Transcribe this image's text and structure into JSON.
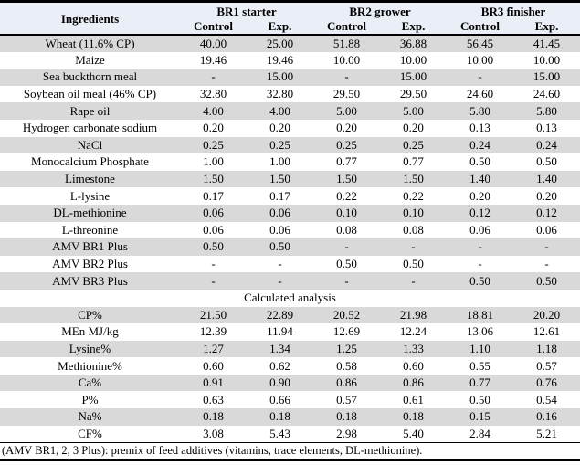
{
  "table": {
    "header": {
      "ingredients_label": "Ingredients",
      "groups": [
        {
          "label": "BR1 starter",
          "subcols": [
            "Control",
            "Exp."
          ]
        },
        {
          "label": "BR2 grower",
          "subcols": [
            "Control",
            "Exp."
          ]
        },
        {
          "label": "BR3 finisher",
          "subcols": [
            "Control",
            "Exp."
          ]
        }
      ]
    },
    "ingredient_rows": [
      {
        "label": "Wheat (11.6% CP)",
        "values": [
          "40.00",
          "25.00",
          "51.88",
          "36.88",
          "56.45",
          "41.45"
        ]
      },
      {
        "label": "Maize",
        "values": [
          "19.46",
          "19.46",
          "10.00",
          "10.00",
          "10.00",
          "10.00"
        ]
      },
      {
        "label": "Sea buckthorn meal",
        "values": [
          "-",
          "15.00",
          "-",
          "15.00",
          "-",
          "15.00"
        ]
      },
      {
        "label": "Soybean oil meal (46% CP)",
        "values": [
          "32.80",
          "32.80",
          "29.50",
          "29.50",
          "24.60",
          "24.60"
        ]
      },
      {
        "label": "Rape oil",
        "values": [
          "4.00",
          "4.00",
          "5.00",
          "5.00",
          "5.80",
          "5.80"
        ]
      },
      {
        "label": "Hydrogen carbonate sodium",
        "values": [
          "0.20",
          "0.20",
          "0.20",
          "0.20",
          "0.13",
          "0.13"
        ]
      },
      {
        "label": "NaCl",
        "values": [
          "0.25",
          "0.25",
          "0.25",
          "0.25",
          "0.24",
          "0.24"
        ]
      },
      {
        "label": "Monocalcium Phosphate",
        "values": [
          "1.00",
          "1.00",
          "0.77",
          "0.77",
          "0.50",
          "0.50"
        ]
      },
      {
        "label": "Limestone",
        "values": [
          "1.50",
          "1.50",
          "1.50",
          "1.50",
          "1.40",
          "1.40"
        ]
      },
      {
        "label": "L-lysine",
        "values": [
          "0.17",
          "0.17",
          "0.22",
          "0.22",
          "0.20",
          "0.20"
        ]
      },
      {
        "label": "DL-methionine",
        "values": [
          "0.06",
          "0.06",
          "0.10",
          "0.10",
          "0.12",
          "0.12"
        ]
      },
      {
        "label": "L-threonine",
        "values": [
          "0.06",
          "0.06",
          "0.08",
          "0.08",
          "0.06",
          "0.06"
        ]
      },
      {
        "label": "AMV BR1 Plus",
        "values": [
          "0.50",
          "0.50",
          "-",
          "-",
          "-",
          "-"
        ]
      },
      {
        "label": "AMV BR2 Plus",
        "values": [
          "-",
          "-",
          "0.50",
          "0.50",
          "-",
          "-"
        ]
      },
      {
        "label": "AMV BR3 Plus",
        "values": [
          "-",
          "-",
          "-",
          "-",
          "0.50",
          "0.50"
        ]
      }
    ],
    "section_label": "Calculated analysis",
    "analysis_rows": [
      {
        "label": "CP%",
        "values": [
          "21.50",
          "22.89",
          "20.52",
          "21.98",
          "18.81",
          "20.20"
        ]
      },
      {
        "label": "MEn MJ/kg",
        "values": [
          "12.39",
          "11.94",
          "12.69",
          "12.24",
          "13.06",
          "12.61"
        ]
      },
      {
        "label": "Lysine%",
        "values": [
          "1.27",
          "1.34",
          "1.25",
          "1.33",
          "1.10",
          "1.18"
        ]
      },
      {
        "label": "Methionine%",
        "values": [
          "0.60",
          "0.62",
          "0.58",
          "0.60",
          "0.55",
          "0.57"
        ]
      },
      {
        "label": "Ca%",
        "values": [
          "0.91",
          "0.90",
          "0.86",
          "0.86",
          "0.77",
          "0.76"
        ]
      },
      {
        "label": "P%",
        "values": [
          "0.63",
          "0.66",
          "0.57",
          "0.61",
          "0.50",
          "0.54"
        ]
      },
      {
        "label": "Na%",
        "values": [
          "0.18",
          "0.18",
          "0.18",
          "0.18",
          "0.15",
          "0.16"
        ]
      },
      {
        "label": "CF%",
        "values": [
          "3.08",
          "5.43",
          "2.98",
          "5.40",
          "2.84",
          "5.21"
        ]
      }
    ],
    "footnote": "(AMV BR1, 2, 3 Plus): premix of feed additives (vitamins, trace elements, DL-methionine)."
  },
  "colors": {
    "stripe_row_bg": "#d9d9d9",
    "header_bg": "#eaeef6",
    "border": "#000000"
  }
}
